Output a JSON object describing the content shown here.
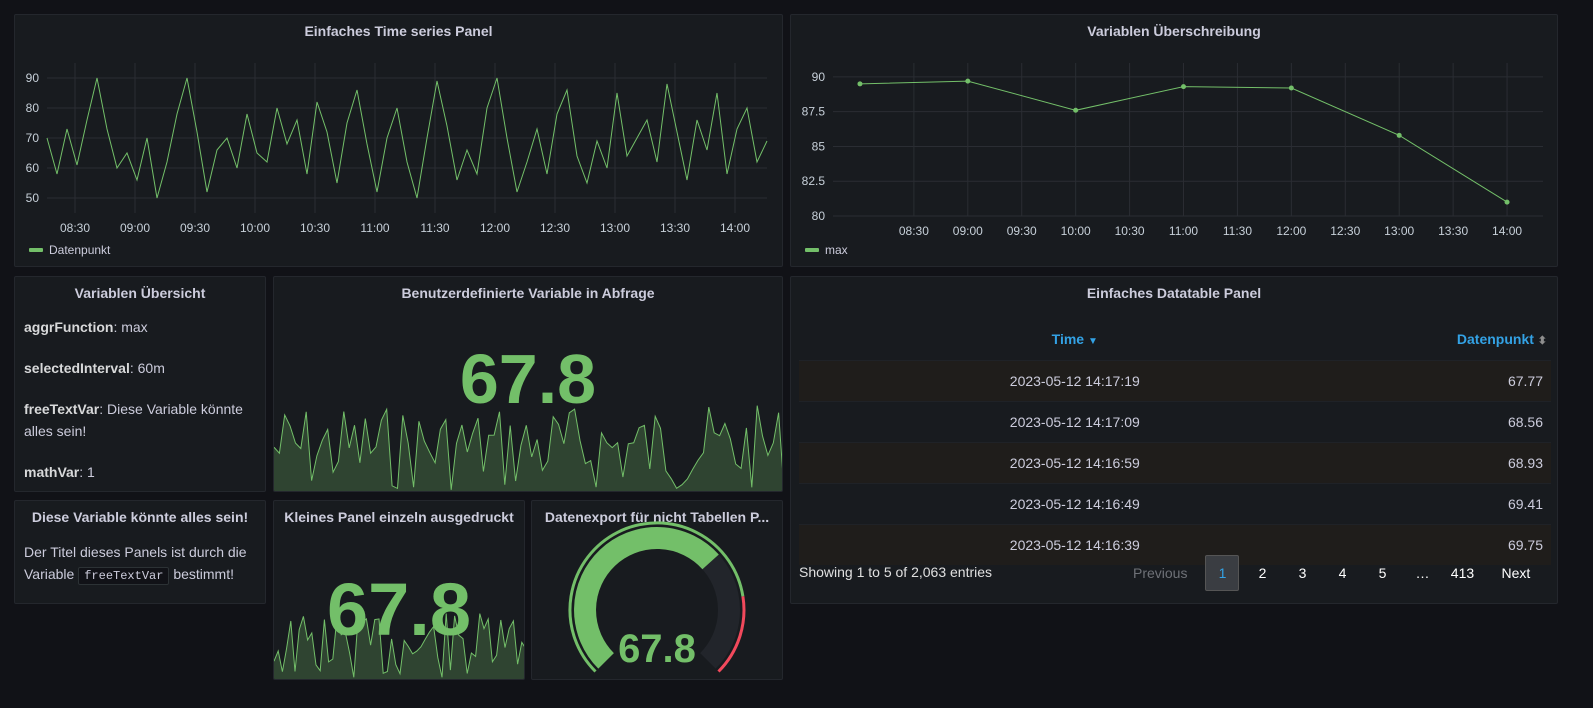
{
  "colors": {
    "series": "#73bf69",
    "link": "#33a2e5",
    "bg": "#111217",
    "panel": "#181b1f",
    "threshold": "#f2495c"
  },
  "ts_panel": {
    "title": "Einfaches Time series Panel",
    "legend": "Datenpunkt",
    "chart_data": {
      "type": "line",
      "series": [
        {
          "name": "Datenpunkt",
          "x": [
            "08:16",
            "08:21",
            "08:26",
            "08:31",
            "08:36",
            "08:41",
            "08:46",
            "08:51",
            "08:56",
            "09:01",
            "09:06",
            "09:11",
            "09:16",
            "09:21",
            "09:26",
            "09:31",
            "09:36",
            "09:41",
            "09:46",
            "09:51",
            "09:56",
            "10:01",
            "10:06",
            "10:11",
            "10:16",
            "10:21",
            "10:26",
            "10:31",
            "10:36",
            "10:41",
            "10:46",
            "10:51",
            "10:56",
            "11:01",
            "11:06",
            "11:11",
            "11:16",
            "11:21",
            "11:26",
            "11:31",
            "11:36",
            "11:41",
            "11:46",
            "11:51",
            "11:56",
            "12:01",
            "12:06",
            "12:11",
            "12:16",
            "12:21",
            "12:26",
            "12:31",
            "12:36",
            "12:41",
            "12:46",
            "12:51",
            "12:56",
            "13:01",
            "13:06",
            "13:11",
            "13:16",
            "13:21",
            "13:26",
            "13:31",
            "13:36",
            "13:41",
            "13:46",
            "13:51",
            "13:56",
            "14:01",
            "14:06",
            "14:11",
            "14:16"
          ],
          "values": [
            70,
            58,
            73,
            61,
            76,
            90,
            73,
            60,
            65,
            56,
            70,
            50,
            62,
            78,
            90,
            72,
            52,
            66,
            70,
            60,
            78,
            65,
            62,
            80,
            68,
            76,
            58,
            82,
            72,
            55,
            75,
            86,
            68,
            52,
            70,
            80,
            62,
            50,
            70,
            89,
            74,
            56,
            66,
            58,
            80,
            90,
            70,
            52,
            62,
            73,
            58,
            78,
            86,
            64,
            55,
            69,
            60,
            85,
            64,
            70,
            76,
            62,
            88,
            72,
            56,
            76,
            66,
            85,
            58,
            73,
            80,
            62,
            69
          ]
        }
      ],
      "xticks": [
        "08:30",
        "09:00",
        "09:30",
        "10:00",
        "10:30",
        "11:00",
        "11:30",
        "12:00",
        "12:30",
        "13:00",
        "13:30",
        "14:00"
      ],
      "yticks": [
        50,
        60,
        70,
        80,
        90
      ],
      "ylim": [
        45,
        95
      ]
    }
  },
  "var_panel": {
    "title": "Variablen Überschreibung",
    "legend": "max",
    "chart_data": {
      "type": "line",
      "series": [
        {
          "name": "max",
          "x": [
            "08:00",
            "09:00",
            "10:00",
            "11:00",
            "12:00",
            "13:00",
            "14:00"
          ],
          "values": [
            89.5,
            89.7,
            87.6,
            89.3,
            89.2,
            85.8,
            81.0
          ]
        }
      ],
      "xticks": [
        "08:30",
        "09:00",
        "09:30",
        "10:00",
        "10:30",
        "11:00",
        "11:30",
        "12:00",
        "12:30",
        "13:00",
        "13:30",
        "14:00"
      ],
      "yticks": [
        "80",
        "82.5",
        "85",
        "87.5",
        "90"
      ],
      "ylim": [
        80,
        91
      ]
    }
  },
  "overview": {
    "title": "Variablen Übersicht",
    "items": [
      {
        "key": "aggrFunction",
        "value": ": max"
      },
      {
        "key": "selectedInterval",
        "value": ": 60m"
      },
      {
        "key": "freeTextVar",
        "value": ": Diese Variable könnte alles sein!"
      },
      {
        "key": "mathVar",
        "value": ": 1"
      }
    ]
  },
  "custom_var_panel": {
    "title": "Benutzerdefinierte Variable in Abfrage",
    "value": "67.8"
  },
  "anything_panel": {
    "title": "Diese Variable könnte alles sein!",
    "text_before": "Der Titel dieses Panels ist durch die Variable ",
    "code": "freeTextVar",
    "text_after": " bestimmt!"
  },
  "small_panel": {
    "title": "Kleines Panel einzeln ausgedruckt",
    "value": "67.8"
  },
  "export_panel": {
    "title": "Datenexport für nicht Tabellen P...",
    "value": "67.8",
    "gauge_fraction": 0.678
  },
  "datatable": {
    "title": "Einfaches Datatable Panel",
    "columns": [
      "Time",
      "Datenpunkt"
    ],
    "rows": [
      [
        "2023-05-12 14:17:19",
        "67.77"
      ],
      [
        "2023-05-12 14:17:09",
        "68.56"
      ],
      [
        "2023-05-12 14:16:59",
        "68.93"
      ],
      [
        "2023-05-12 14:16:49",
        "69.41"
      ],
      [
        "2023-05-12 14:16:39",
        "69.75"
      ]
    ],
    "info": "Showing 1 to 5 of 2,063 entries",
    "pager": {
      "previous": "Previous",
      "pages": [
        "1",
        "2",
        "3",
        "4",
        "5",
        "…",
        "413"
      ],
      "next": "Next"
    }
  }
}
